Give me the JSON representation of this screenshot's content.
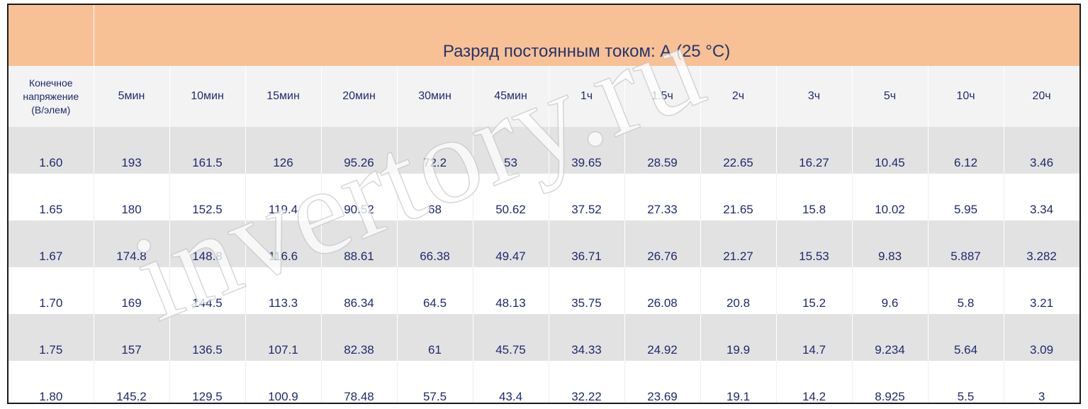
{
  "title": "Разряд постоянным током: А (25 °C)",
  "header_first": [
    "Конечное",
    "напряжение",
    "(В/элем)"
  ],
  "columns": [
    "5мин",
    "10мин",
    "15мин",
    "20мин",
    "30мин",
    "45мин",
    "1ч",
    "1.5ч",
    "2ч",
    "3ч",
    "5ч",
    "10ч",
    "20ч"
  ],
  "rows": [
    {
      "voltage": "1.60",
      "values": [
        "193",
        "161.5",
        "126",
        "95.26",
        "72.2",
        "53",
        "39.65",
        "28.59",
        "22.65",
        "16.27",
        "10.45",
        "6.12",
        "3.46"
      ]
    },
    {
      "voltage": "1.65",
      "values": [
        "180",
        "152.5",
        "119.4",
        "90.52",
        "68",
        "50.62",
        "37.52",
        "27.33",
        "21.65",
        "15.8",
        "10.02",
        "5.95",
        "3.34"
      ]
    },
    {
      "voltage": "1.67",
      "values": [
        "174.8",
        "148.8",
        "116.6",
        "88.61",
        "66.38",
        "49.47",
        "36.71",
        "26.76",
        "21.27",
        "15.53",
        "9.83",
        "5.887",
        "3.282"
      ]
    },
    {
      "voltage": "1.70",
      "values": [
        "169",
        "144.5",
        "113.3",
        "86.34",
        "64.5",
        "48.13",
        "35.75",
        "26.08",
        "20.8",
        "15.2",
        "9.6",
        "5.8",
        "3.21"
      ]
    },
    {
      "voltage": "1.75",
      "values": [
        "157",
        "136.5",
        "107.1",
        "82.38",
        "61",
        "45.75",
        "34.33",
        "24.92",
        "19.9",
        "14.7",
        "9.234",
        "5.64",
        "3.09"
      ]
    },
    {
      "voltage": "1.80",
      "values": [
        "145.2",
        "129.5",
        "100.9",
        "78.48",
        "57.5",
        "43.4",
        "32.22",
        "23.69",
        "19.1",
        "14.2",
        "8.925",
        "5.5",
        "3"
      ]
    }
  ],
  "watermark": "invertory.ru"
}
